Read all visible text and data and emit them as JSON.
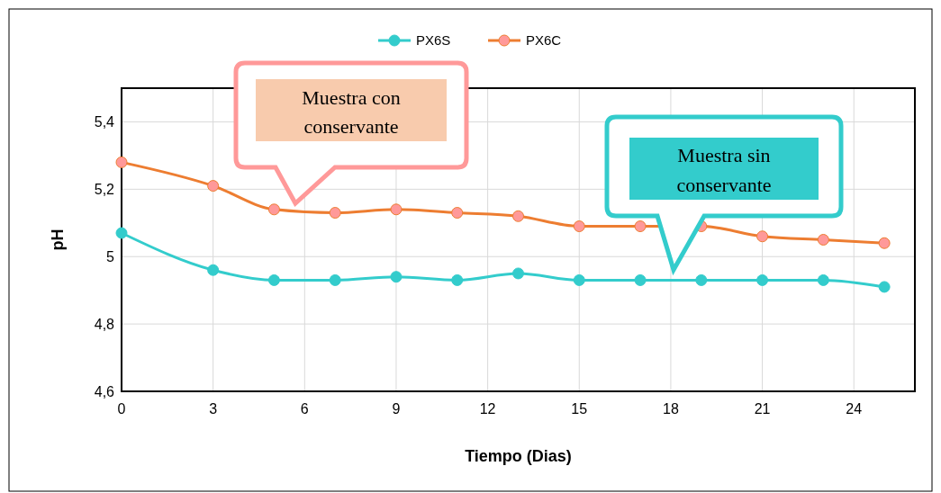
{
  "chart_data": {
    "type": "line",
    "xlabel": "Tiempo (Dias)",
    "ylabel": "pH",
    "x": [
      0,
      3,
      5,
      7,
      9,
      11,
      13,
      15,
      17,
      19,
      21,
      23,
      25
    ],
    "series": [
      {
        "name": "PX6S",
        "color": "#33cccc",
        "values": [
          5.07,
          4.96,
          4.93,
          4.93,
          4.94,
          4.93,
          4.95,
          4.93,
          4.93,
          4.93,
          4.93,
          4.93,
          4.91
        ]
      },
      {
        "name": "PX6C",
        "color": "#ed7d31",
        "values": [
          5.28,
          5.21,
          5.14,
          5.13,
          5.14,
          5.13,
          5.12,
          5.09,
          5.09,
          5.09,
          5.06,
          5.05,
          5.04
        ]
      }
    ],
    "xlim": [
      0,
      26
    ],
    "xticks": [
      0,
      3,
      6,
      9,
      12,
      15,
      18,
      21,
      24
    ],
    "ylim": [
      4.6,
      5.5
    ],
    "yticks": [
      {
        "value": 4.6,
        "label": "4,6"
      },
      {
        "value": 4.8,
        "label": "4,8"
      },
      {
        "value": 5,
        "label": "5"
      },
      {
        "value": 5.2,
        "label": "5,2"
      },
      {
        "value": 5.4,
        "label": "5,4"
      }
    ],
    "grid": true,
    "legend": "top",
    "marker": "circle",
    "line_style": "solid",
    "annotations": [
      "Muestra con conservante",
      "Muestra sin conservante"
    ]
  }
}
